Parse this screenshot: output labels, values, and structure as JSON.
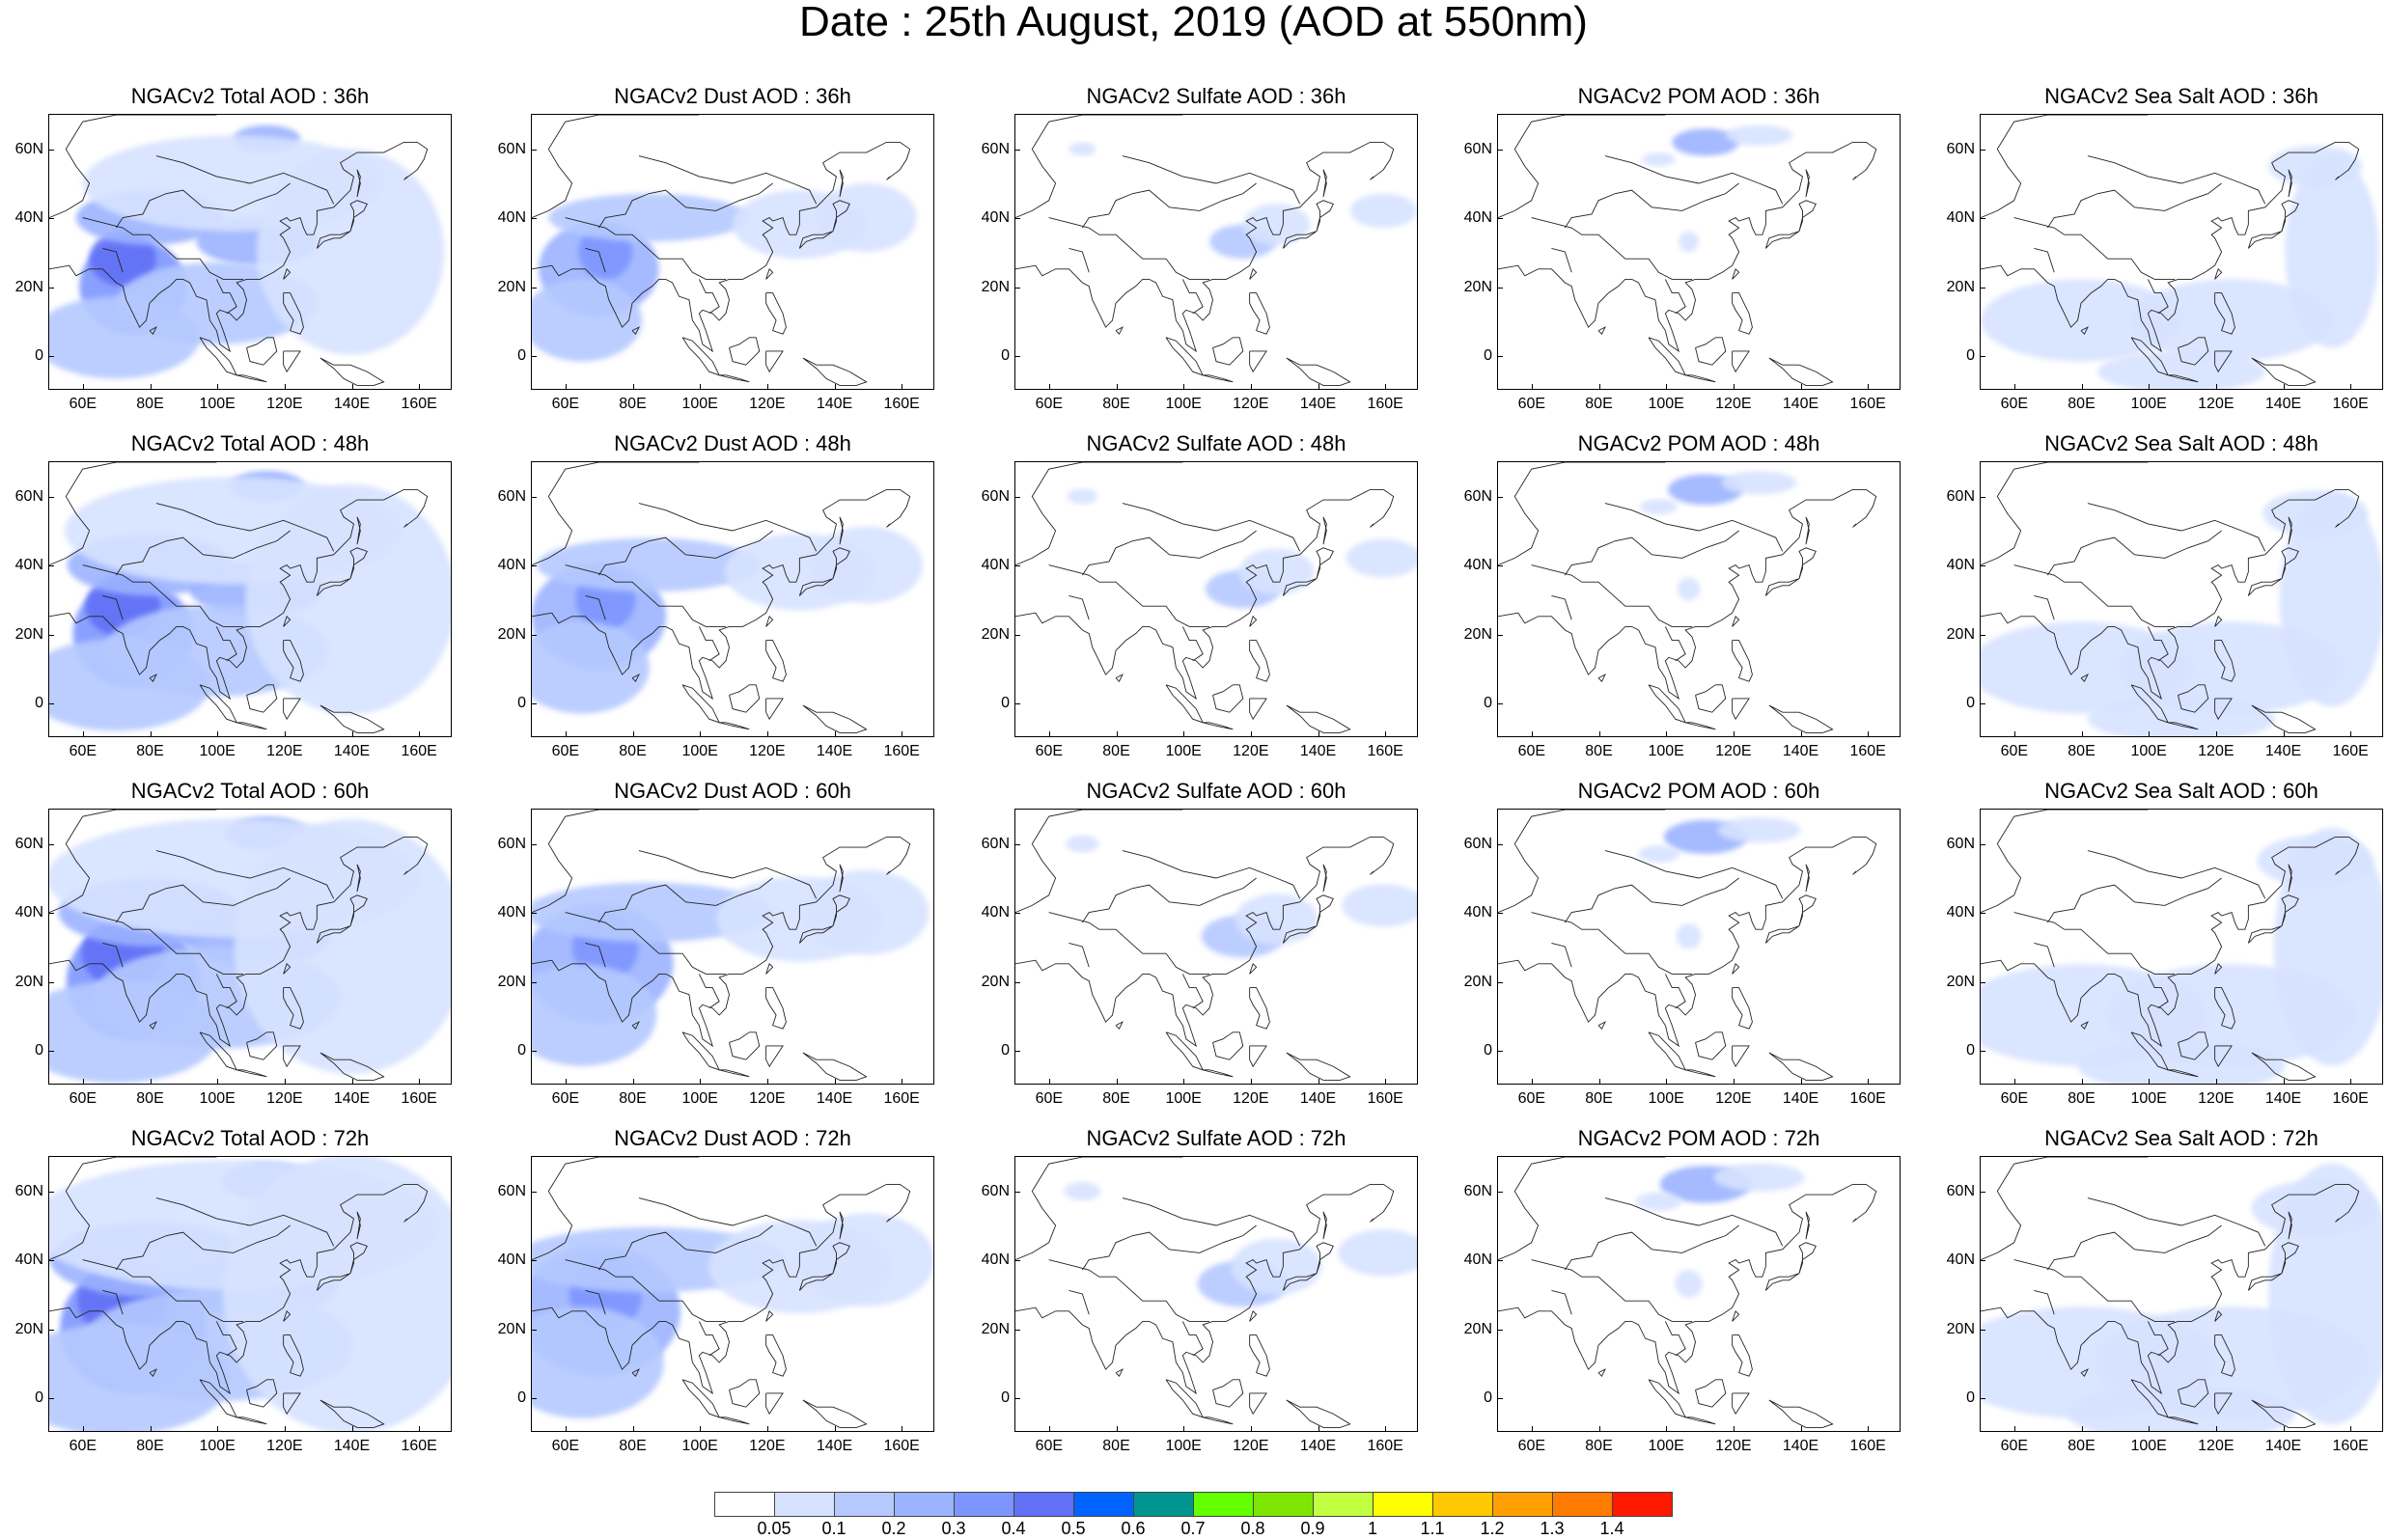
{
  "title": "Date : 25th August, 2019 (AOD at 550nm)",
  "species": [
    "Total",
    "Dust",
    "Sulfate",
    "POM",
    "Sea Salt"
  ],
  "panel_titles": [
    [
      "NGACv2 Total AOD : 36h",
      "NGACv2 Dust AOD : 36h",
      "NGACv2 Sulfate AOD : 36h",
      "NGACv2 POM AOD : 36h",
      "NGACv2 Sea Salt AOD : 36h"
    ],
    [
      "NGACv2 Total AOD : 48h",
      "NGACv2 Dust AOD : 48h",
      "NGACv2 Sulfate AOD : 48h",
      "NGACv2 POM AOD : 48h",
      "NGACv2 Sea Salt AOD : 48h"
    ],
    [
      "NGACv2 Total AOD : 60h",
      "NGACv2 Dust AOD : 60h",
      "NGACv2 Sulfate AOD : 60h",
      "NGACv2 POM AOD : 60h",
      "NGACv2 Sea Salt AOD : 60h"
    ],
    [
      "NGACv2 Total AOD : 72h",
      "NGACv2 Dust AOD : 72h",
      "NGACv2 Sulfate AOD : 72h",
      "NGACv2 POM AOD : 72h",
      "NGACv2 Sea Salt  AOD : 72h"
    ]
  ],
  "map": {
    "lon_range": [
      50,
      170
    ],
    "lat_range": [
      -10,
      70
    ],
    "lon_ticks": [
      "60E",
      "80E",
      "100E",
      "120E",
      "140E",
      "160E"
    ],
    "lon_tick_values": [
      60,
      80,
      100,
      120,
      140,
      160
    ],
    "lat_ticks": [
      "60N",
      "40N",
      "20N",
      "0"
    ],
    "lat_tick_values": [
      60,
      40,
      20,
      0
    ]
  },
  "colorbar": {
    "labels": [
      "0.05",
      "0.1",
      "0.2",
      "0.3",
      "0.4",
      "0.5",
      "0.6",
      "0.7",
      "0.8",
      "0.9",
      "1",
      "1.1",
      "1.2",
      "1.3",
      "1.4"
    ],
    "colors": [
      "#ffffff",
      "#d6e2ff",
      "#b5c9ff",
      "#9bb2ff",
      "#7d96ff",
      "#6170f5",
      "#0063ff",
      "#00968f",
      "#64ff00",
      "#7ee600",
      "#c2ff41",
      "#ffff00",
      "#ffc800",
      "#ffa000",
      "#ff7c00",
      "#ff1900"
    ]
  },
  "plumes": {
    "Total": [
      {
        "lon": 75,
        "lat": 20,
        "rx": 16,
        "ry": 14,
        "c": 4
      },
      {
        "lon": 72,
        "lat": 28,
        "rx": 10,
        "ry": 8,
        "c": 5
      },
      {
        "lon": 80,
        "lat": 40,
        "rx": 22,
        "ry": 8,
        "c": 3
      },
      {
        "lon": 112,
        "lat": 33,
        "rx": 18,
        "ry": 7,
        "c": 3
      },
      {
        "lon": 115,
        "lat": 63,
        "rx": 10,
        "ry": 4,
        "c": 3
      },
      {
        "lon": 100,
        "lat": 15,
        "rx": 30,
        "ry": 12,
        "c": 2
      },
      {
        "lon": 140,
        "lat": 30,
        "rx": 28,
        "ry": 30,
        "c": 1
      },
      {
        "lon": 70,
        "lat": 5,
        "rx": 25,
        "ry": 12,
        "c": 2
      },
      {
        "lon": 105,
        "lat": 50,
        "rx": 45,
        "ry": 14,
        "c": 1
      }
    ],
    "Dust": [
      {
        "lon": 70,
        "lat": 25,
        "rx": 18,
        "ry": 14,
        "c": 3
      },
      {
        "lon": 72,
        "lat": 30,
        "rx": 8,
        "ry": 8,
        "c": 4
      },
      {
        "lon": 85,
        "lat": 40,
        "rx": 30,
        "ry": 7,
        "c": 2
      },
      {
        "lon": 65,
        "lat": 10,
        "rx": 18,
        "ry": 12,
        "c": 2
      },
      {
        "lon": 130,
        "lat": 38,
        "rx": 20,
        "ry": 10,
        "c": 1
      },
      {
        "lon": 150,
        "lat": 40,
        "rx": 15,
        "ry": 10,
        "c": 1
      }
    ],
    "Sulfate": [
      {
        "lon": 118,
        "lat": 33,
        "rx": 10,
        "ry": 5,
        "c": 2
      },
      {
        "lon": 128,
        "lat": 38,
        "rx": 10,
        "ry": 6,
        "c": 1
      },
      {
        "lon": 160,
        "lat": 42,
        "rx": 10,
        "ry": 5,
        "c": 1
      },
      {
        "lon": 70,
        "lat": 60,
        "rx": 4,
        "ry": 2,
        "c": 1
      }
    ],
    "POM": [
      {
        "lon": 112,
        "lat": 62,
        "rx": 10,
        "ry": 4,
        "c": 3
      },
      {
        "lon": 98,
        "lat": 57,
        "rx": 5,
        "ry": 2,
        "c": 1
      },
      {
        "lon": 128,
        "lat": 64,
        "rx": 10,
        "ry": 3,
        "c": 1
      },
      {
        "lon": 107,
        "lat": 33,
        "rx": 3,
        "ry": 3,
        "c": 1
      }
    ],
    "Sea Salt": [
      {
        "lon": 80,
        "lat": 10,
        "rx": 30,
        "ry": 12,
        "c": 1
      },
      {
        "lon": 125,
        "lat": 10,
        "rx": 30,
        "ry": 12,
        "c": 1
      },
      {
        "lon": 155,
        "lat": 30,
        "rx": 14,
        "ry": 28,
        "c": 1
      },
      {
        "lon": 110,
        "lat": -5,
        "rx": 25,
        "ry": 6,
        "c": 1
      },
      {
        "lon": 150,
        "lat": 55,
        "rx": 14,
        "ry": 6,
        "c": 1
      }
    ]
  },
  "coastlines": [
    [
      [
        50,
        40
      ],
      [
        55,
        42
      ],
      [
        60,
        45
      ],
      [
        62,
        50
      ],
      [
        58,
        55
      ],
      [
        55,
        60
      ],
      [
        60,
        68
      ],
      [
        70,
        70
      ],
      [
        80,
        70
      ],
      [
        90,
        70
      ],
      [
        100,
        70
      ]
    ],
    [
      [
        50,
        25
      ],
      [
        56,
        26
      ],
      [
        58,
        23
      ],
      [
        62,
        25
      ],
      [
        66,
        25
      ],
      [
        68,
        23
      ],
      [
        70,
        21
      ],
      [
        72,
        20
      ],
      [
        73,
        16
      ],
      [
        75,
        12
      ],
      [
        77,
        8
      ],
      [
        79,
        10
      ],
      [
        80,
        15
      ],
      [
        81,
        16
      ],
      [
        83,
        18
      ],
      [
        86,
        20
      ],
      [
        88,
        22
      ],
      [
        90,
        22
      ],
      [
        92,
        21
      ],
      [
        94,
        17
      ],
      [
        97,
        16
      ],
      [
        98,
        10
      ],
      [
        100,
        7
      ],
      [
        101,
        3
      ],
      [
        104,
        1
      ],
      [
        103,
        4
      ],
      [
        102,
        7
      ],
      [
        100,
        12
      ],
      [
        101,
        13
      ],
      [
        104,
        12
      ],
      [
        106,
        10
      ],
      [
        108,
        12
      ],
      [
        109,
        16
      ],
      [
        108,
        19
      ],
      [
        106,
        21
      ],
      [
        109,
        22
      ],
      [
        113,
        22
      ],
      [
        117,
        24
      ],
      [
        120,
        26
      ],
      [
        122,
        30
      ],
      [
        121,
        32
      ],
      [
        120,
        34
      ],
      [
        119,
        35
      ],
      [
        122,
        37
      ],
      [
        119,
        39
      ],
      [
        121,
        40
      ],
      [
        122,
        39
      ],
      [
        125,
        40
      ],
      [
        126,
        37
      ],
      [
        127,
        35
      ],
      [
        129,
        35
      ],
      [
        130,
        38
      ],
      [
        130,
        42
      ],
      [
        135,
        43
      ],
      [
        140,
        48
      ],
      [
        141,
        52
      ],
      [
        138,
        54
      ],
      [
        137,
        56
      ],
      [
        142,
        59
      ],
      [
        150,
        59
      ],
      [
        156,
        62
      ],
      [
        160,
        62
      ],
      [
        163,
        60
      ],
      [
        162,
        57
      ],
      [
        160,
        54
      ],
      [
        156,
        51
      ],
      [
        157,
        52
      ]
    ],
    [
      [
        135,
        34
      ],
      [
        132,
        33
      ],
      [
        130,
        31
      ],
      [
        131,
        34
      ],
      [
        134,
        35
      ],
      [
        137,
        35
      ],
      [
        140,
        36
      ],
      [
        141,
        39
      ],
      [
        141,
        42
      ],
      [
        140,
        44
      ],
      [
        142,
        45
      ],
      [
        145,
        44
      ],
      [
        144,
        42
      ],
      [
        141,
        40
      ],
      [
        140,
        36
      ],
      [
        137,
        34
      ],
      [
        135,
        34
      ]
    ],
    [
      [
        120,
        22
      ],
      [
        121,
        25
      ],
      [
        122,
        24
      ],
      [
        120,
        22
      ]
    ],
    [
      [
        120,
        18
      ],
      [
        122,
        18
      ],
      [
        124,
        14
      ],
      [
        125,
        12
      ],
      [
        126,
        8
      ],
      [
        125,
        6
      ],
      [
        122,
        7
      ],
      [
        123,
        10
      ],
      [
        121,
        13
      ],
      [
        120,
        15
      ],
      [
        120,
        18
      ]
    ],
    [
      [
        95,
        5
      ],
      [
        98,
        4
      ],
      [
        101,
        1
      ],
      [
        104,
        -2
      ],
      [
        106,
        -6
      ],
      [
        103,
        -5
      ],
      [
        100,
        -1
      ],
      [
        97,
        2
      ],
      [
        95,
        5
      ]
    ],
    [
      [
        106,
        -6
      ],
      [
        110,
        -7
      ],
      [
        115,
        -8
      ],
      [
        112,
        -7
      ],
      [
        108,
        -6
      ],
      [
        106,
        -6
      ]
    ],
    [
      [
        109,
        2
      ],
      [
        110,
        -2
      ],
      [
        114,
        -3
      ],
      [
        117,
        0
      ],
      [
        118,
        1
      ],
      [
        117,
        5
      ],
      [
        115,
        5
      ],
      [
        112,
        3
      ],
      [
        109,
        2
      ]
    ],
    [
      [
        120,
        1
      ],
      [
        125,
        1
      ],
      [
        123,
        -2
      ],
      [
        121,
        -5
      ],
      [
        120,
        -3
      ],
      [
        120,
        1
      ]
    ],
    [
      [
        131,
        -1
      ],
      [
        135,
        -3
      ],
      [
        140,
        -3
      ],
      [
        145,
        -5
      ],
      [
        150,
        -8
      ],
      [
        147,
        -9
      ],
      [
        142,
        -9
      ],
      [
        138,
        -7
      ],
      [
        135,
        -4
      ],
      [
        131,
        -1
      ]
    ],
    [
      [
        80,
        7
      ],
      [
        82,
        8
      ],
      [
        81,
        6
      ],
      [
        80,
        7
      ]
    ],
    [
      [
        142,
        46
      ],
      [
        143,
        50
      ],
      [
        142,
        54
      ],
      [
        143,
        52
      ],
      [
        142,
        46
      ]
    ],
    [
      [
        82,
        58
      ],
      [
        90,
        56
      ],
      [
        100,
        52
      ],
      [
        110,
        50
      ],
      [
        120,
        53
      ],
      [
        128,
        50
      ],
      [
        133,
        48
      ],
      [
        135,
        44
      ]
    ],
    [
      [
        60,
        40
      ],
      [
        68,
        38
      ],
      [
        72,
        37
      ],
      [
        75,
        35
      ],
      [
        80,
        35
      ],
      [
        88,
        28
      ],
      [
        95,
        28
      ],
      [
        98,
        24
      ],
      [
        102,
        22
      ],
      [
        108,
        22
      ]
    ],
    [
      [
        70,
        37
      ],
      [
        72,
        40
      ],
      [
        78,
        41
      ],
      [
        80,
        45
      ],
      [
        85,
        47
      ],
      [
        90,
        48
      ],
      [
        96,
        43
      ],
      [
        105,
        42
      ],
      [
        112,
        45
      ],
      [
        118,
        47
      ],
      [
        122,
        50
      ]
    ],
    [
      [
        66,
        31
      ],
      [
        70,
        30
      ],
      [
        72,
        24
      ]
    ],
    [
      [
        100,
        22
      ],
      [
        102,
        18
      ],
      [
        104,
        18
      ],
      [
        106,
        14
      ],
      [
        103,
        12
      ]
    ]
  ]
}
